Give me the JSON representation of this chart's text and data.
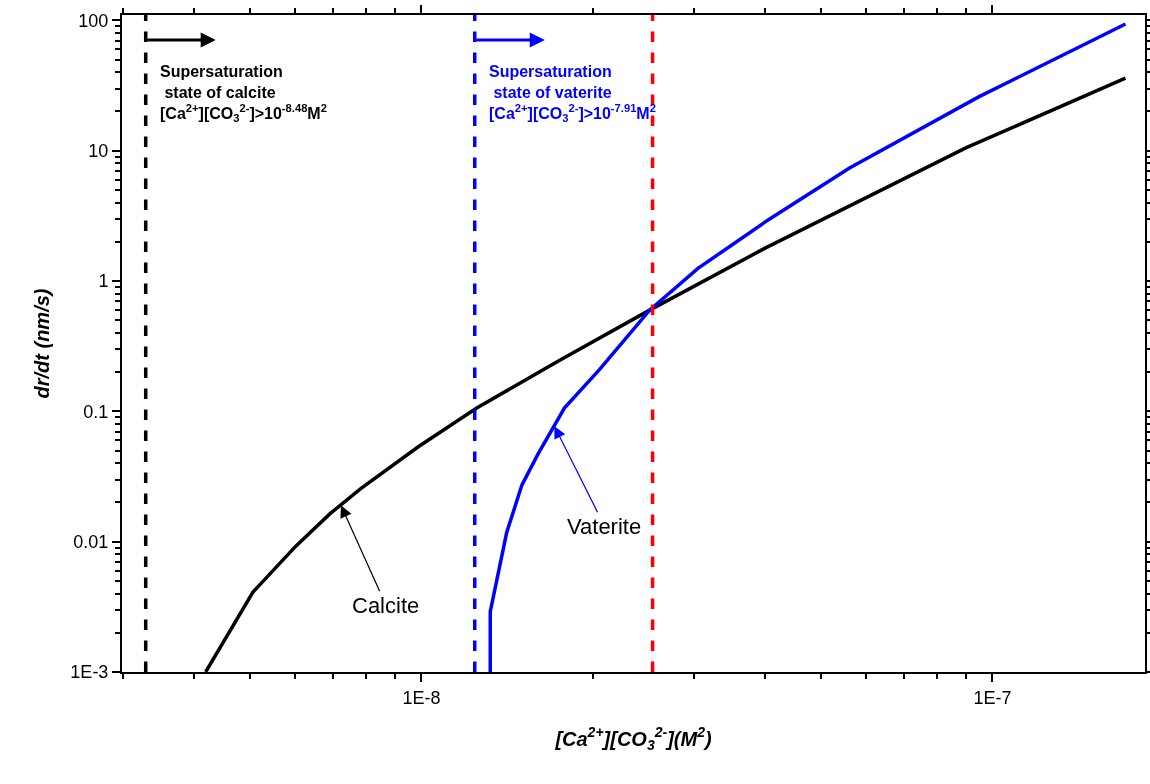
{
  "chart_data": {
    "type": "line",
    "xlabel": "[Ca$^{2+}$][CO$_{3}$$^{2-}$](M$^{2}$)",
    "ylabel": "dr/dt (nm/s)",
    "log": "xy",
    "xlim": [
      2.99e-09,
      1.85e-07
    ],
    "ylim": [
      0.001,
      110
    ],
    "xticks": [
      {
        "value": 1e-08,
        "label": "1E-8"
      },
      {
        "value": 1e-07,
        "label": "1E-7"
      }
    ],
    "yticks": [
      {
        "value": 0.001,
        "label": "1E-3"
      },
      0.01,
      0.1,
      1,
      10,
      100
    ],
    "line_style": "solid",
    "marker": "none",
    "series": [
      {
        "color": "#000000",
        "x": [
          4.19e-09,
          5.07e-09,
          6.02e-09,
          6.92e-09,
          7.83e-09,
          9.89e-09,
          1.25e-08,
          1.75e-08,
          2.51e-08,
          3.99e-08,
          8.98e-08,
          1.71e-07
        ],
        "values": [
          0.001,
          0.0041,
          0.0092,
          0.0164,
          0.0255,
          0.0537,
          0.106,
          0.248,
          0.598,
          1.78,
          10.5,
          36.1
        ]
      },
      {
        "color": "#0000ff",
        "x": [
          1.32e-08,
          1.32e-08,
          1.41e-08,
          1.5e-08,
          1.6e-08,
          1.78e-08,
          2.05e-08,
          2.51e-08,
          3.05e-08,
          4.06e-08,
          5.62e-08,
          9.46e-08,
          1.71e-07
        ],
        "values": [
          0.001,
          0.0029,
          0.0117,
          0.0273,
          0.047,
          0.106,
          0.209,
          0.598,
          1.25,
          2.97,
          7.36,
          25.9,
          93.8
        ]
      }
    ],
    "ref_lines": [
      {
        "axis": "x",
        "value": 3.29e-09,
        "color": "#000000",
        "line_style": "dashed",
        "label": "Supersaturation\n state of calcite\n[Ca$^{2+}$][CO$_{3}$$^{2-}$]>10$^{-8.48}$M$^{2}$"
      },
      {
        "axis": "x",
        "value": 1.24e-08,
        "color": "#0000ff",
        "line_style": "dashed",
        "label": "Supersaturation\n state of vaterite\n[Ca$^{2+}$][CO$_{3}$$^{2-}$]>10$^{-7.91}$M$^{2}$"
      },
      {
        "axis": "x",
        "value": 2.54e-08,
        "color": "#ff0000",
        "line_style": "dashed"
      }
    ],
    "annotations": [
      {
        "text": "Calcite",
        "x": 7.23e-09,
        "y": 0.019
      },
      {
        "text": "Vaterite",
        "x": 1.71e-08,
        "y": 0.077
      }
    ]
  }
}
